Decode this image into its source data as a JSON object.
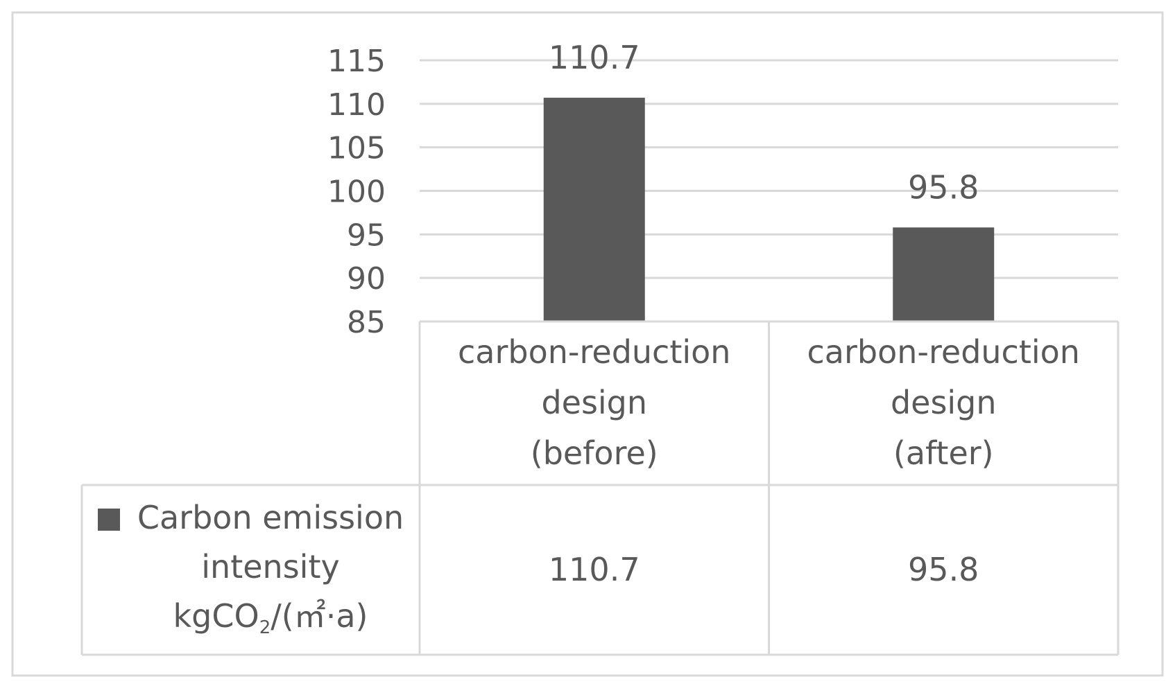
{
  "chart_data": {
    "type": "bar",
    "categories": [
      "carbon-reduction design (before)",
      "carbon-reduction design (after)"
    ],
    "category_lines": [
      [
        "carbon-reduction",
        "design",
        "(before)"
      ],
      [
        "carbon-reduction",
        "design",
        "(after)"
      ]
    ],
    "series": [
      {
        "name": "Carbon emission intensity kgCO2/(㎡·a)",
        "name_lines": [
          "Carbon emission",
          "intensity"
        ],
        "unit_parts": {
          "prefix": "kgCO",
          "sub": "2",
          "suffix": "/(㎡·a)"
        },
        "values": [
          110.7,
          95.8
        ],
        "data_labels": [
          "110.7",
          "95.8"
        ],
        "color": "#595959"
      }
    ],
    "yticks": [
      "85",
      "90",
      "95",
      "100",
      "105",
      "110",
      "115"
    ],
    "ylim": [
      85,
      115
    ],
    "grid": true,
    "data_table": true,
    "title": "",
    "xlabel": "",
    "ylabel": ""
  },
  "colors": {
    "bar": "#595959",
    "grid": "#d9d9d9",
    "table_border": "#d9d9d9",
    "frame_border": "#d9d9d9",
    "text": "#595959"
  }
}
